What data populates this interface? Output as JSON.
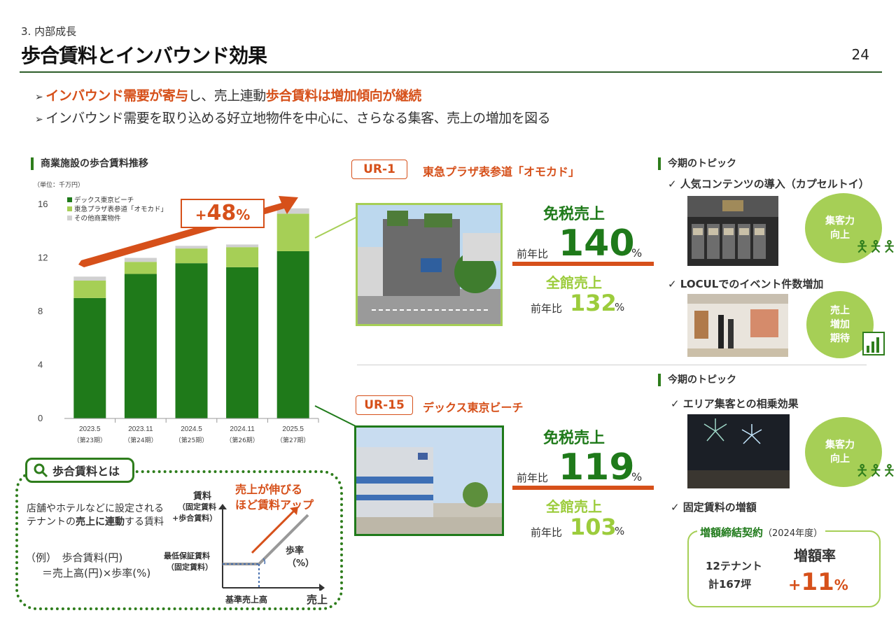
{
  "header": {
    "section": "3. 内部成長",
    "title": "歩合賃料とインバウンド効果",
    "page_number": "24"
  },
  "bullets": [
    {
      "p1": "インバウンド需要が寄与",
      "p2": "し、売上連動",
      "p3": "歩合賃料は増加傾向が継続"
    },
    {
      "text": "インバウンド需要を取り込める好立地物件を中心に、さらなる集客、売上の増加を図る"
    }
  ],
  "chart_section": {
    "title": "商業施設の歩合賃料推移",
    "unit": "（単位：千万円）",
    "growth_label": "+48",
    "growth_unit": "%"
  },
  "chart_data": {
    "type": "bar",
    "stacked": true,
    "categories": [
      "2023.5",
      "2023.11",
      "2024.5",
      "2024.11",
      "2025.5"
    ],
    "category_sub": [
      "（第23期）",
      "（第24期）",
      "（第25期）",
      "（第26期）",
      "（第27期）"
    ],
    "series": [
      {
        "name": "デックス東京ビーチ",
        "color": "#1f7a1a",
        "values": [
          9.0,
          10.8,
          11.6,
          11.3,
          12.5
        ]
      },
      {
        "name": "東急プラザ表参道「オモカド」",
        "color": "#a6cf56",
        "values": [
          1.3,
          0.9,
          1.1,
          1.5,
          2.8
        ]
      },
      {
        "name": "その他商業物件",
        "color": "#d0d0d0",
        "values": [
          0.3,
          0.3,
          0.2,
          0.2,
          0.4
        ]
      }
    ],
    "ylim": [
      0,
      16
    ],
    "yticks": [
      0,
      4,
      8,
      12,
      16
    ],
    "legend": "top-left"
  },
  "ur1": {
    "tag": "UR-1",
    "name": "東急プラザ表参道「オモカド」",
    "duty_free_label": "免税売上",
    "yoy_label": "前年比",
    "duty_free_value": "140",
    "pct": "%",
    "total_label": "全館売上",
    "total_value": "132",
    "topic_title": "今期のトピック",
    "topic1": "人気コンテンツの導入（カプセルトイ）",
    "topic2": "LOCULでのイベント件数増加",
    "circle1": [
      "集客力",
      "向上"
    ],
    "circle2": [
      "売上",
      "増加",
      "期待"
    ]
  },
  "ur15": {
    "tag": "UR-15",
    "name": "デックス東京ビーチ",
    "duty_free_label": "免税売上",
    "yoy_label": "前年比",
    "duty_free_value": "119",
    "pct": "%",
    "total_label": "全館売上",
    "total_value": "103",
    "topic_title": "今期のトピック",
    "topic1": "エリア集客との相乗効果",
    "topic2": "固定賃料の増額",
    "circle1": [
      "集客力",
      "向上"
    ],
    "contract_title": "増額締結契約",
    "contract_year": "（2024年度）",
    "tenants": "12テナント",
    "area": "計167坪",
    "increase_label": "増額率",
    "increase_value": "11",
    "increase_plus": "+",
    "increase_pct": "%"
  },
  "explainer": {
    "pill": "歩合賃料とは",
    "desc1": "店舗やホテルなどに設定される",
    "desc2a": "テナントの",
    "desc2b": "売上に連動",
    "desc2c": "する賃料",
    "example1": "（例）　歩合賃料(円)",
    "example2": "＝売上高(円)×歩率(%)",
    "y_axis": "賃料",
    "y_axis_sub1": "（固定賃料",
    "y_axis_sub2": "+歩合賃料）",
    "min_label1": "最低保証賃料",
    "min_label2": "（固定賃料）",
    "headline1": "売上が伸びる",
    "headline2": "ほど賃料アップ",
    "rate1": "歩率",
    "rate2": "（%）",
    "x_base": "基準売上高",
    "x_axis": "売上"
  }
}
